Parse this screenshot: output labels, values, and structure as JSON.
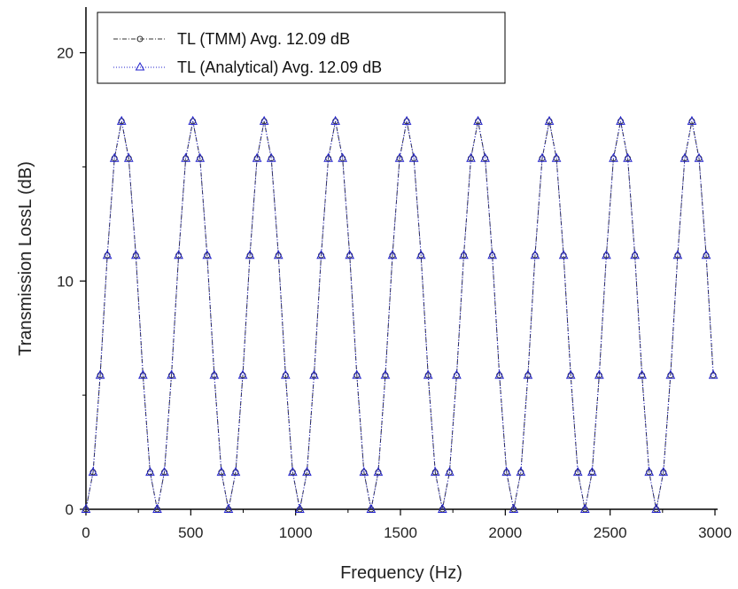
{
  "chart_data": {
    "type": "line",
    "title": "",
    "xlabel": "Frequency (Hz)",
    "ylabel": "Transmission LossL (dB)",
    "xlim": [
      0,
      3000
    ],
    "ylim": [
      0,
      22
    ],
    "xticks": [
      0,
      500,
      1000,
      1500,
      2000,
      2500,
      3000
    ],
    "yticks": [
      0,
      10,
      20
    ],
    "grid": false,
    "legend_position": "top-left",
    "period_hz": 340,
    "peak_db": 17,
    "step_hz": 34,
    "series": [
      {
        "name": "TL (TMM) Avg. 12.09 dB",
        "color": "#333333",
        "marker": "circle",
        "line": "dash-dot"
      },
      {
        "name": "TL (Analytical) Avg. 12.09 dB",
        "color": "#2222cc",
        "marker": "triangle",
        "line": "dotted"
      }
    ]
  }
}
